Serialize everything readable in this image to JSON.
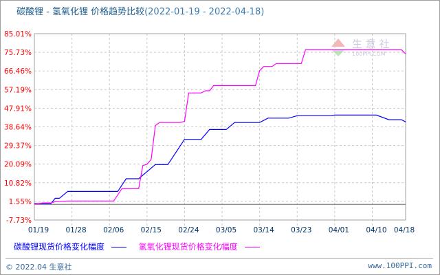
{
  "chart_data": {
    "type": "line",
    "title": "碳酸锂 - 氢氧化锂 价格趋势比较",
    "date_range": "(2022-01-19 - 2022-04-18)",
    "xlabel": "",
    "ylabel": "",
    "x_tick_labels": [
      "01/19",
      "01/28",
      "02/06",
      "02/15",
      "02/24",
      "03/05",
      "03/14",
      "03/23",
      "04/01",
      "04/10",
      "04/18"
    ],
    "y_tick_labels": [
      "85.01%",
      "75.73%",
      "66.46%",
      "57.19%",
      "47.91%",
      "38.64%",
      "29.37%",
      "20.09%",
      "10.82%",
      "1.55%",
      "-7.73%"
    ],
    "ylim": [
      -7.73,
      85.01
    ],
    "xlim": [
      "2022-01-19",
      "2022-04-18"
    ],
    "grid": true,
    "legend_position": "bottom",
    "series": [
      {
        "name": "碳酸锂现货价格变化幅度",
        "color": "#0000ff",
        "points": [
          [
            "2022-01-19",
            0.5
          ],
          [
            "2022-01-23",
            0.5
          ],
          [
            "2022-01-24",
            3.1
          ],
          [
            "2022-01-25",
            3.1
          ],
          [
            "2022-01-27",
            6.5
          ],
          [
            "2022-02-08",
            6.5
          ],
          [
            "2022-02-10",
            12.8
          ],
          [
            "2022-02-13",
            12.8
          ],
          [
            "2022-02-17",
            19.9
          ],
          [
            "2022-02-20",
            19.9
          ],
          [
            "2022-02-24",
            32.4
          ],
          [
            "2022-02-28",
            32.4
          ],
          [
            "2022-03-02",
            37.3
          ],
          [
            "2022-03-06",
            37.3
          ],
          [
            "2022-03-08",
            40.8
          ],
          [
            "2022-03-14",
            40.8
          ],
          [
            "2022-03-16",
            43.0
          ],
          [
            "2022-03-21",
            43.0
          ],
          [
            "2022-03-23",
            44.2
          ],
          [
            "2022-03-31",
            44.2
          ],
          [
            "2022-04-01",
            44.5
          ],
          [
            "2022-04-11",
            44.5
          ],
          [
            "2022-04-14",
            42.2
          ],
          [
            "2022-04-17",
            42.2
          ],
          [
            "2022-04-18",
            41.1
          ]
        ]
      },
      {
        "name": "氢氧化锂现货价格变化幅度",
        "color": "#ff00ff",
        "points": [
          [
            "2022-01-19",
            0.2
          ],
          [
            "2022-01-21",
            0.8
          ],
          [
            "2022-01-23",
            0.8
          ],
          [
            "2022-01-24",
            1.4
          ],
          [
            "2022-01-27",
            1.7
          ],
          [
            "2022-02-07",
            1.7
          ],
          [
            "2022-02-09",
            7.9
          ],
          [
            "2022-02-13",
            7.9
          ],
          [
            "2022-02-14",
            19.4
          ],
          [
            "2022-02-15",
            20.0
          ],
          [
            "2022-02-16",
            22.5
          ],
          [
            "2022-02-17",
            39.3
          ],
          [
            "2022-02-18",
            40.8
          ],
          [
            "2022-02-23",
            40.8
          ],
          [
            "2022-02-24",
            41.4
          ],
          [
            "2022-02-25",
            55.5
          ],
          [
            "2022-02-28",
            55.5
          ],
          [
            "2022-03-01",
            56.6
          ],
          [
            "2022-03-02",
            56.6
          ],
          [
            "2022-03-03",
            59.2
          ],
          [
            "2022-03-13",
            59.2
          ],
          [
            "2022-03-14",
            66.6
          ],
          [
            "2022-03-15",
            68.7
          ],
          [
            "2022-03-17",
            68.7
          ],
          [
            "2022-03-18",
            70.2
          ],
          [
            "2022-03-24",
            70.2
          ],
          [
            "2022-03-25",
            77.0
          ],
          [
            "2022-04-17",
            77.0
          ],
          [
            "2022-04-18",
            75.0
          ]
        ]
      }
    ]
  },
  "footer": {
    "copyright": "© 2022.04 生意社",
    "site": "www.100PPI.com"
  },
  "watermark": {
    "name": "生意社",
    "url": "100PPI.COM"
  },
  "colors": {
    "axis_label_y": "#ff0000",
    "axis_label_x": "#003366",
    "grid": "#c8c8c8"
  }
}
